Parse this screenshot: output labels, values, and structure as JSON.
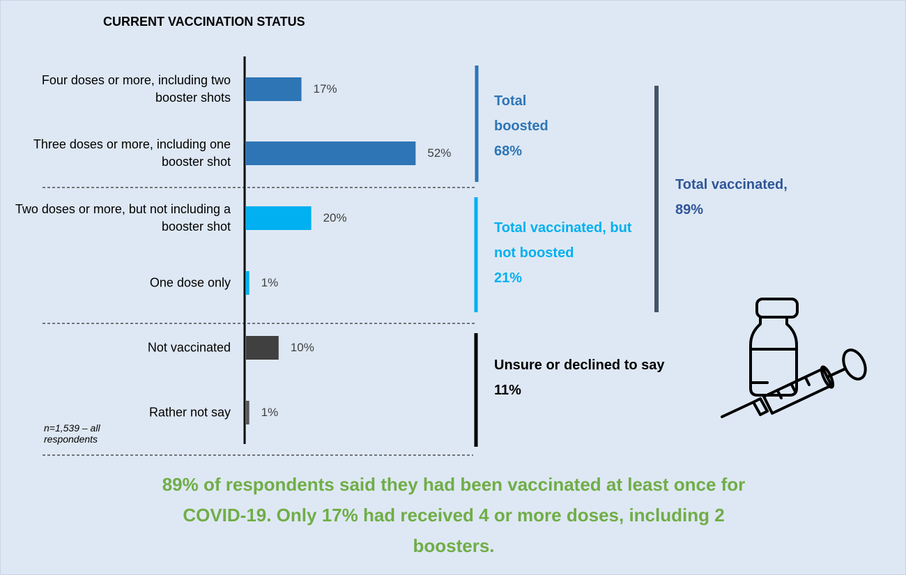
{
  "chart_data": {
    "type": "bar",
    "title": "CURRENT VACCINATION STATUS",
    "categories": [
      "Four doses or more, including two booster shots",
      "Three doses or more, including one booster shot",
      "Two doses or more, but not including a booster shot",
      "One dose only",
      "Not vaccinated",
      "Rather not say"
    ],
    "values": [
      17,
      52,
      20,
      1,
      10,
      1
    ],
    "value_labels": [
      "17%",
      "52%",
      "20%",
      "1%",
      "10%",
      "1%"
    ],
    "colors": [
      "#2e75b6",
      "#2e75b6",
      "#00b0f0",
      "#00b0f0",
      "#404040",
      "#595959"
    ],
    "groups": [
      {
        "text": "Total boosted",
        "value_label": "68%",
        "color": "#2e75b6"
      },
      {
        "text": "Total vaccinated, but not boosted",
        "value_label": "21%",
        "color": "#00b0f0"
      },
      {
        "text": "Unsure or declined to say",
        "value_label": "11%",
        "color": "#000000"
      },
      {
        "text": "Total vaccinated,",
        "value_label": "89%",
        "color": "#2f5597"
      }
    ],
    "note": "n=1,539 – all respondents",
    "footer": "89% of respondents said they had been vaccinated at least once for COVID-19.  Only 17% had received 4 or more doses, including 2 boosters."
  }
}
